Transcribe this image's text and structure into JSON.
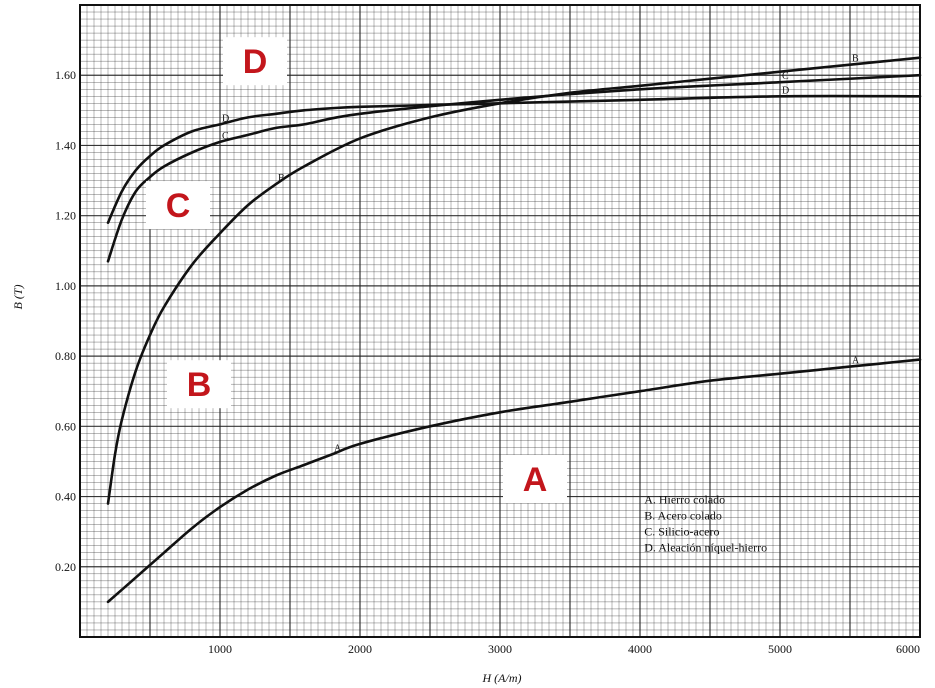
{
  "chart_data": {
    "type": "line",
    "title": "",
    "xlabel": "H (A/m)",
    "ylabel": "B (T)",
    "xlim": [
      0,
      6000
    ],
    "ylim": [
      0,
      1.8
    ],
    "x_ticks": [
      1000,
      2000,
      3000,
      4000,
      5000,
      6000
    ],
    "x_tick_labels": [
      "1000",
      "2000",
      "3000",
      "4000",
      "5000",
      "6000"
    ],
    "y_ticks": [
      0.2,
      0.4,
      0.6,
      0.8,
      1.0,
      1.2,
      1.4,
      1.6
    ],
    "y_tick_labels": [
      "0.20",
      "0.40",
      "0.60",
      "0.80",
      "1.00",
      "1.20",
      "1.40",
      "1.60"
    ],
    "grid": true,
    "legend_position": "bottom-right",
    "legend": [
      "A. Hierro colado",
      "B. Acero colado",
      "C. Silicio-acero",
      "D. Aleación níquel-hierro"
    ],
    "series": [
      {
        "marker": "A",
        "big_label": "A",
        "points": [
          [
            200,
            0.1
          ],
          [
            400,
            0.17
          ],
          [
            600,
            0.24
          ],
          [
            800,
            0.31
          ],
          [
            1000,
            0.37
          ],
          [
            1200,
            0.42
          ],
          [
            1400,
            0.46
          ],
          [
            1600,
            0.49
          ],
          [
            1800,
            0.52
          ],
          [
            2000,
            0.55
          ],
          [
            2500,
            0.6
          ],
          [
            3000,
            0.64
          ],
          [
            3500,
            0.67
          ],
          [
            4000,
            0.7
          ],
          [
            4500,
            0.73
          ],
          [
            5000,
            0.75
          ],
          [
            5500,
            0.77
          ],
          [
            6000,
            0.79
          ]
        ]
      },
      {
        "marker": "B",
        "big_label": "B",
        "points": [
          [
            200,
            0.38
          ],
          [
            250,
            0.52
          ],
          [
            300,
            0.62
          ],
          [
            400,
            0.76
          ],
          [
            500,
            0.86
          ],
          [
            600,
            0.94
          ],
          [
            800,
            1.06
          ],
          [
            1000,
            1.15
          ],
          [
            1200,
            1.23
          ],
          [
            1400,
            1.29
          ],
          [
            1600,
            1.34
          ],
          [
            2000,
            1.42
          ],
          [
            2500,
            1.48
          ],
          [
            3000,
            1.52
          ],
          [
            3500,
            1.55
          ],
          [
            4000,
            1.57
          ],
          [
            4500,
            1.59
          ],
          [
            5000,
            1.61
          ],
          [
            5500,
            1.63
          ],
          [
            6000,
            1.65
          ]
        ]
      },
      {
        "marker": "C",
        "big_label": "C",
        "points": [
          [
            200,
            1.07
          ],
          [
            300,
            1.19
          ],
          [
            400,
            1.27
          ],
          [
            500,
            1.31
          ],
          [
            600,
            1.34
          ],
          [
            800,
            1.38
          ],
          [
            1000,
            1.41
          ],
          [
            1200,
            1.43
          ],
          [
            1400,
            1.45
          ],
          [
            1600,
            1.46
          ],
          [
            2000,
            1.49
          ],
          [
            3000,
            1.53
          ],
          [
            4000,
            1.56
          ],
          [
            5000,
            1.58
          ],
          [
            6000,
            1.6
          ]
        ]
      },
      {
        "marker": "D",
        "big_label": "D",
        "points": [
          [
            200,
            1.18
          ],
          [
            300,
            1.27
          ],
          [
            400,
            1.33
          ],
          [
            500,
            1.37
          ],
          [
            600,
            1.4
          ],
          [
            800,
            1.44
          ],
          [
            1000,
            1.46
          ],
          [
            1200,
            1.48
          ],
          [
            1400,
            1.49
          ],
          [
            1600,
            1.5
          ],
          [
            2000,
            1.51
          ],
          [
            3000,
            1.52
          ],
          [
            4000,
            1.53
          ],
          [
            5000,
            1.54
          ],
          [
            6000,
            1.54
          ]
        ]
      }
    ],
    "colors": {
      "ink": "#111111",
      "grid": "#222222",
      "big_label": "#c3161c"
    }
  }
}
